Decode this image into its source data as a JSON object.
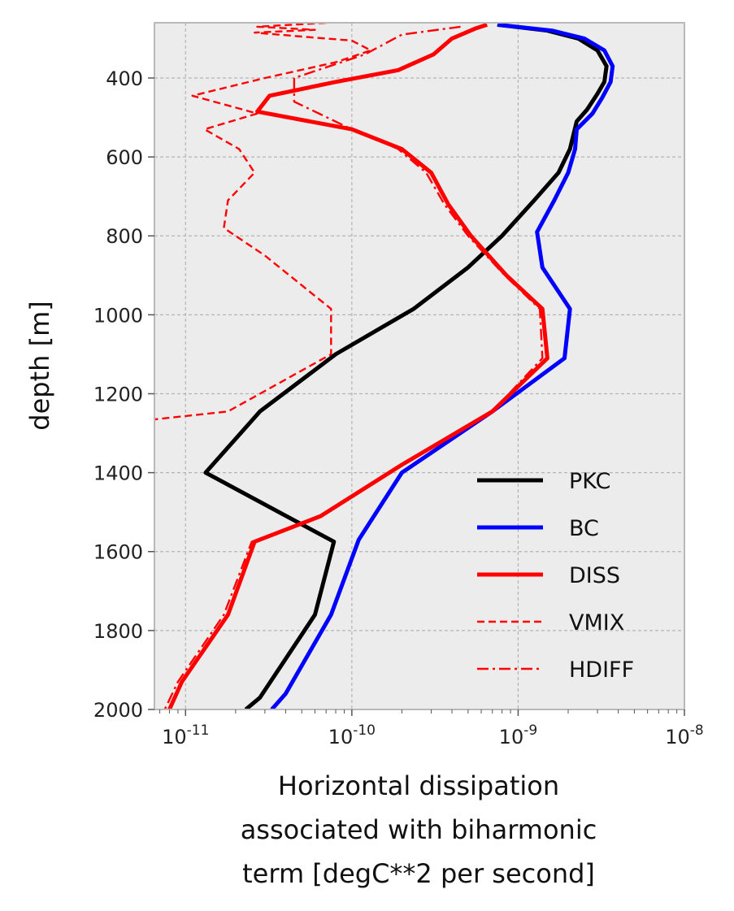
{
  "chart_data": {
    "type": "line",
    "ylabel": "depth [m]",
    "xlabel_lines": [
      "Horizontal dissipation",
      "associated with biharmonic",
      "term [degC**2 per second]"
    ],
    "xscale": "log",
    "xlim": [
      6.5e-12,
      1e-08
    ],
    "ylim": [
      2000,
      260
    ],
    "y_inverted": true,
    "grid": true,
    "legend_position": "lower-right",
    "yticks": [
      400,
      600,
      800,
      1000,
      1200,
      1400,
      1600,
      1800,
      2000
    ],
    "xticks": [
      {
        "value": 1e-11,
        "base": "10",
        "exp": "-11"
      },
      {
        "value": 1e-10,
        "base": "10",
        "exp": "-10"
      },
      {
        "value": 1e-09,
        "base": "10",
        "exp": "-9"
      },
      {
        "value": 1e-08,
        "base": "10",
        "exp": "-8"
      }
    ],
    "series": [
      {
        "name": "PKC",
        "color": "#000000",
        "style": "solid",
        "width": 5,
        "points": [
          [
            7.5e-10,
            265
          ],
          [
            1.5e-09,
            280
          ],
          [
            2.3e-09,
            300
          ],
          [
            3e-09,
            330
          ],
          [
            3.4e-09,
            370
          ],
          [
            3.3e-09,
            410
          ],
          [
            3e-09,
            440
          ],
          [
            2.6e-09,
            480
          ],
          [
            2.25e-09,
            510
          ],
          [
            2.05e-09,
            580
          ],
          [
            1.75e-09,
            640
          ],
          [
            1.25e-09,
            710
          ],
          [
            8e-10,
            800
          ],
          [
            5e-10,
            880
          ],
          [
            2.35e-10,
            985
          ],
          [
            8e-11,
            1100
          ],
          [
            2.8e-11,
            1245
          ],
          [
            1.32e-11,
            1400
          ],
          [
            7.8e-11,
            1575
          ],
          [
            6e-11,
            1760
          ],
          [
            2.8e-11,
            1970
          ],
          [
            2.3e-11,
            2000
          ]
        ]
      },
      {
        "name": "BC",
        "color": "#0000ff",
        "style": "solid",
        "width": 5,
        "points": [
          [
            7.5e-10,
            265
          ],
          [
            1.6e-09,
            280
          ],
          [
            2.5e-09,
            300
          ],
          [
            3.3e-09,
            330
          ],
          [
            3.7e-09,
            370
          ],
          [
            3.6e-09,
            410
          ],
          [
            3.2e-09,
            450
          ],
          [
            2.8e-09,
            490
          ],
          [
            2.25e-09,
            530
          ],
          [
            2.2e-09,
            580
          ],
          [
            2e-09,
            640
          ],
          [
            1.65e-09,
            710
          ],
          [
            1.3e-09,
            790
          ],
          [
            1.4e-09,
            880
          ],
          [
            2.05e-09,
            985
          ],
          [
            1.9e-09,
            1110
          ],
          [
            7e-10,
            1245
          ],
          [
            2e-10,
            1400
          ],
          [
            1.1e-10,
            1570
          ],
          [
            7.5e-11,
            1760
          ],
          [
            4e-11,
            1960
          ],
          [
            3.3e-11,
            2000
          ]
        ]
      },
      {
        "name": "DISS",
        "color": "#ff0000",
        "style": "solid",
        "width": 5,
        "points": [
          [
            6.5e-10,
            265
          ],
          [
            5.5e-10,
            275
          ],
          [
            4e-10,
            300
          ],
          [
            3.1e-10,
            340
          ],
          [
            1.9e-10,
            380
          ],
          [
            8e-11,
            410
          ],
          [
            3.2e-11,
            445
          ],
          [
            2.7e-11,
            485
          ],
          [
            1e-10,
            530
          ],
          [
            2e-10,
            580
          ],
          [
            3e-10,
            640
          ],
          [
            3.8e-10,
            720
          ],
          [
            5.2e-10,
            800
          ],
          [
            8.5e-10,
            900
          ],
          [
            1.4e-09,
            985
          ],
          [
            1.5e-09,
            1110
          ],
          [
            7e-10,
            1245
          ],
          [
            2e-10,
            1380
          ],
          [
            6.5e-11,
            1510
          ],
          [
            2.6e-11,
            1575
          ],
          [
            1.8e-11,
            1760
          ],
          [
            9.5e-12,
            1930
          ],
          [
            8e-12,
            2000
          ]
        ]
      },
      {
        "name": "VMIX",
        "color": "#ff0000",
        "style": "dashed",
        "width": 2.4,
        "points": [
          [
            7e-11,
            260
          ],
          [
            2.7e-11,
            270
          ],
          [
            6e-11,
            278
          ],
          [
            2.6e-11,
            285
          ],
          [
            5e-11,
            295
          ],
          [
            1e-10,
            305
          ],
          [
            1.3e-10,
            330
          ],
          [
            8e-11,
            360
          ],
          [
            3e-11,
            400
          ],
          [
            1.1e-11,
            445
          ],
          [
            2.7e-11,
            490
          ],
          [
            1.3e-11,
            530
          ],
          [
            2.1e-11,
            580
          ],
          [
            2.6e-11,
            640
          ],
          [
            1.8e-11,
            710
          ],
          [
            1.7e-11,
            780
          ],
          [
            3e-11,
            850
          ],
          [
            7.5e-11,
            985
          ],
          [
            7.5e-11,
            1100
          ],
          [
            1.8e-11,
            1245
          ],
          [
            6.5e-12,
            1265
          ]
        ]
      },
      {
        "name": "HDIFF",
        "color": "#ff0000",
        "style": "dashdot",
        "width": 2.4,
        "points": [
          [
            4.5e-10,
            270
          ],
          [
            2e-10,
            290
          ],
          [
            1.2e-10,
            340
          ],
          [
            4.5e-11,
            400
          ],
          [
            4.5e-11,
            460
          ],
          [
            1e-10,
            530
          ],
          [
            1.9e-10,
            580
          ],
          [
            2.8e-10,
            640
          ],
          [
            3.6e-10,
            720
          ],
          [
            5e-10,
            800
          ],
          [
            8.3e-10,
            900
          ],
          [
            1.35e-09,
            985
          ],
          [
            1.4e-09,
            1110
          ],
          [
            7e-10,
            1245
          ],
          [
            2e-10,
            1380
          ],
          [
            6.5e-11,
            1510
          ],
          [
            2.5e-11,
            1575
          ],
          [
            1.7e-11,
            1760
          ],
          [
            9e-12,
            1930
          ],
          [
            7.5e-12,
            2000
          ]
        ]
      }
    ]
  }
}
